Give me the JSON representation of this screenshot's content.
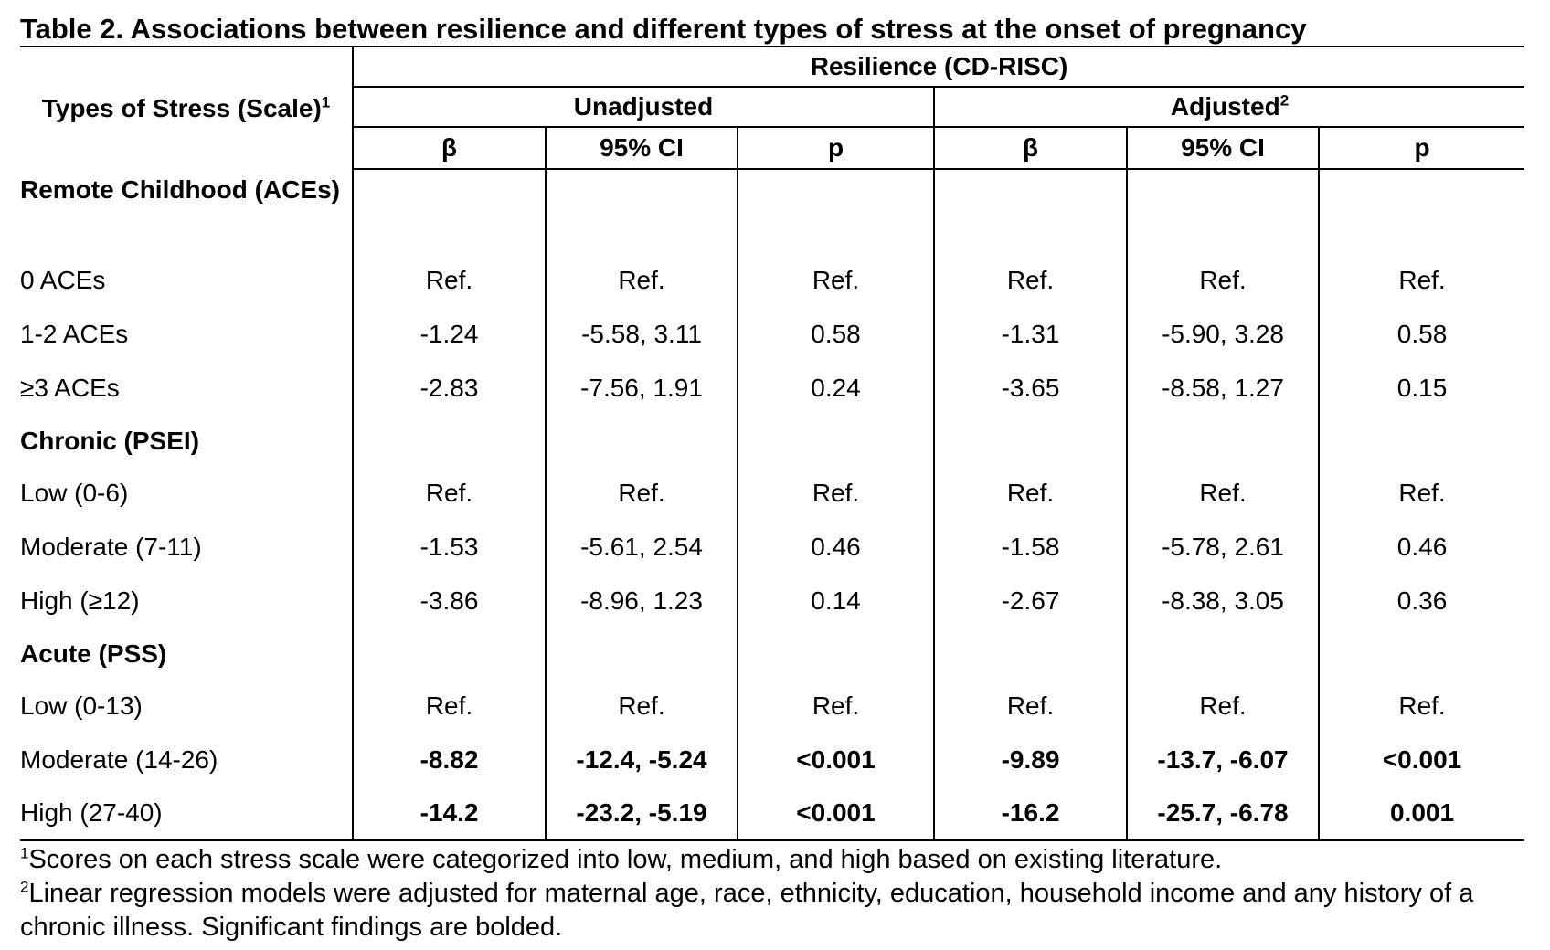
{
  "title": "Table 2.  Associations between resilience and different types of stress at the onset of pregnancy",
  "header": {
    "row_label": "Types of Stress (Scale)",
    "row_label_sup": "1",
    "super_group": "Resilience (CD-RISC)",
    "groups": [
      {
        "label": "Unadjusted",
        "sup": ""
      },
      {
        "label": "Adjusted",
        "sup": "2"
      }
    ],
    "columns": [
      "β",
      "95% CI",
      "p",
      "β",
      "95% CI",
      "p"
    ]
  },
  "sections": [
    {
      "label": "Remote Childhood (ACEs)",
      "rows": [
        {
          "label": "0 ACEs",
          "values": [
            "Ref.",
            "Ref.",
            "Ref.",
            "Ref.",
            "Ref.",
            "Ref."
          ],
          "bold": [
            false,
            false,
            false,
            false,
            false,
            false
          ]
        },
        {
          "label": "1-2 ACEs",
          "values": [
            "-1.24",
            "-5.58, 3.11",
            "0.58",
            "-1.31",
            "-5.90, 3.28",
            "0.58"
          ],
          "bold": [
            false,
            false,
            false,
            false,
            false,
            false
          ]
        },
        {
          "label": "≥3 ACEs",
          "values": [
            "-2.83",
            "-7.56, 1.91",
            "0.24",
            "-3.65",
            "-8.58, 1.27",
            "0.15"
          ],
          "bold": [
            false,
            false,
            false,
            false,
            false,
            false
          ]
        }
      ]
    },
    {
      "label": "Chronic (PSEI)",
      "rows": [
        {
          "label": "Low (0-6)",
          "values": [
            "Ref.",
            "Ref.",
            "Ref.",
            "Ref.",
            "Ref.",
            "Ref."
          ],
          "bold": [
            false,
            false,
            false,
            false,
            false,
            false
          ]
        },
        {
          "label": "Moderate (7-11)",
          "values": [
            "-1.53",
            "-5.61, 2.54",
            "0.46",
            "-1.58",
            "-5.78, 2.61",
            "0.46"
          ],
          "bold": [
            false,
            false,
            false,
            false,
            false,
            false
          ]
        },
        {
          "label": "High (≥12)",
          "values": [
            "-3.86",
            "-8.96, 1.23",
            "0.14",
            "-2.67",
            "-8.38, 3.05",
            "0.36"
          ],
          "bold": [
            false,
            false,
            false,
            false,
            false,
            false
          ]
        }
      ]
    },
    {
      "label": "Acute (PSS)",
      "rows": [
        {
          "label": "Low (0-13)",
          "values": [
            "Ref.",
            "Ref.",
            "Ref.",
            "Ref.",
            "Ref.",
            "Ref."
          ],
          "bold": [
            false,
            false,
            false,
            false,
            false,
            false
          ]
        },
        {
          "label": "Moderate (14-26)",
          "values": [
            "-8.82",
            "-12.4, -5.24",
            "<0.001",
            "-9.89",
            "-13.7, -6.07",
            "<0.001"
          ],
          "bold": [
            true,
            true,
            true,
            true,
            true,
            true
          ]
        },
        {
          "label": "High (27-40)",
          "values": [
            "-14.2",
            "-23.2, -5.19",
            "<0.001",
            "-16.2",
            "-25.7, -6.78",
            "0.001"
          ],
          "bold": [
            true,
            true,
            true,
            true,
            true,
            true
          ]
        }
      ]
    }
  ],
  "footnotes": [
    {
      "sup": "1",
      "text": "Scores on each stress scale were categorized into low, medium, and high based on existing literature."
    },
    {
      "sup": "2",
      "text": "Linear regression models were adjusted for maternal age, race, ethnicity, education, household income and any history of a chronic illness. Significant findings are bolded."
    }
  ]
}
